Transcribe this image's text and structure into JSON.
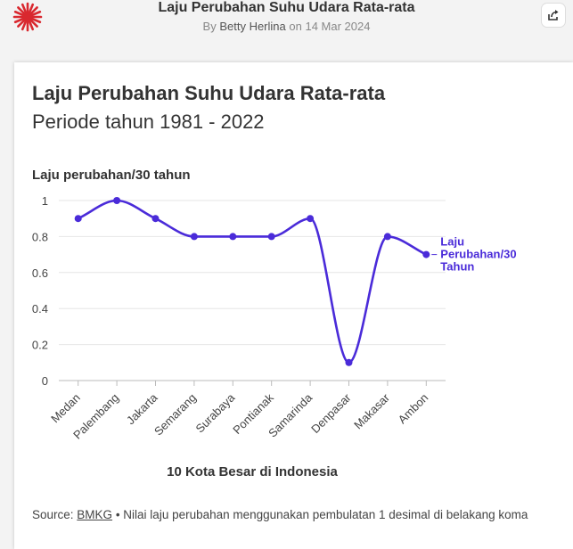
{
  "header": {
    "title": "Laju Perubahan Suhu Udara Rata-rata",
    "byline_prefix": "By",
    "author": "Betty Herlina",
    "date_prefix": "on",
    "date": "14 Mar 2024",
    "logo_icon": "red-sun-burst-icon",
    "share_icon": "share-icon"
  },
  "colors": {
    "series": "#4a2bd9",
    "logo": "#d9282f",
    "grid": "#e6e6e6"
  },
  "chart_data": {
    "type": "line",
    "title": "Laju Perubahan Suhu Udara Rata-rata",
    "subtitle": "Periode tahun 1981 - 2022",
    "ylabel": "Laju perubahan/30 tahun",
    "xlabel": "10 Kota Besar di Indonesia",
    "categories": [
      "Medan",
      "Palembang",
      "Jakarta",
      "Semarang",
      "Surabaya",
      "Pontianak",
      "Samarinda",
      "Denpasar",
      "Makasar",
      "Ambon"
    ],
    "series": [
      {
        "name": "Laju Perubahan/30 Tahun",
        "label_lines": [
          "Laju",
          "Perubahan/30",
          "Tahun"
        ],
        "values": [
          0.9,
          1.0,
          0.9,
          0.8,
          0.8,
          0.8,
          0.9,
          0.1,
          0.8,
          0.7
        ]
      }
    ],
    "ylim": [
      0,
      1
    ],
    "yticks": [
      "0",
      "0.2",
      "0.4",
      "0.6",
      "0.8",
      "1"
    ],
    "ytick_values": [
      0,
      0.2,
      0.4,
      0.6,
      0.8,
      1
    ],
    "grid": true,
    "smooth": true
  },
  "footer": {
    "source_label": "Source:",
    "source_link": "BMKG",
    "note": "• Nilai laju perubahan menggunakan pembulatan 1 desimal di belakang koma"
  }
}
